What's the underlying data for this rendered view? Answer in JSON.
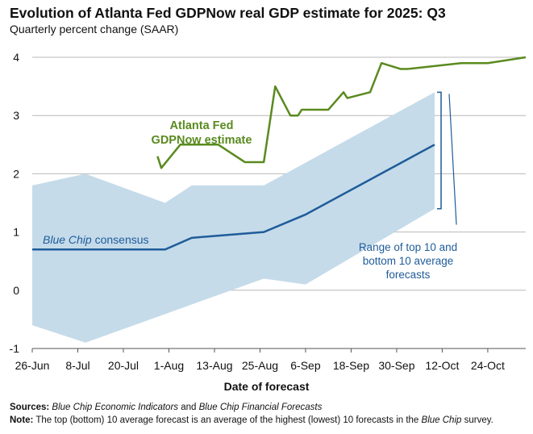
{
  "title": "Evolution of Atlanta Fed GDPNow real GDP estimate for 2025: Q3",
  "subtitle": "Quarterly percent change (SAAR)",
  "footnotes": {
    "sources_label": "Sources:",
    "sources_text_1": "Blue Chip Economic Indicators",
    "sources_text_2": " and ",
    "sources_text_3": "Blue Chip Financial Forecasts",
    "note_label": "Note:",
    "note_text_1": " The top (bottom) 10 average forecast is an average of the highest (lowest) 10 forecasts in the ",
    "note_text_2": "Blue Chip",
    "note_text_3": " survey."
  },
  "chart_data": {
    "type": "line",
    "title": "Evolution of Atlanta Fed GDPNow real GDP estimate for 2025: Q3",
    "subtitle": "Quarterly percent change (SAAR)",
    "xlabel": "Date of forecast",
    "ylabel": "",
    "x_tick_labels": [
      "26-Jun",
      "8-Jul",
      "20-Jul",
      "1-Aug",
      "13-Aug",
      "25-Aug",
      "6-Sep",
      "18-Sep",
      "30-Sep",
      "12-Oct",
      "24-Oct"
    ],
    "y_tick_labels": [
      "-1",
      "0",
      "1",
      "2",
      "3",
      "4"
    ],
    "ylim": [
      -1,
      4
    ],
    "xlim_days": [
      0,
      130
    ],
    "grid": "horizontal",
    "colors": {
      "gdpnow": "#5a8a1f",
      "consensus": "#1f5c99",
      "range": "#c5dbea",
      "grid": "#b8b8b8"
    },
    "series": [
      {
        "name": "Atlanta Fed GDPNow estimate",
        "label_lines": [
          "Atlanta Fed",
          "GDPNow estimate"
        ],
        "points": [
          [
            "2025-07-29",
            2.3
          ],
          [
            "2025-07-30",
            2.1
          ],
          [
            "2025-08-04",
            2.5
          ],
          [
            "2025-08-07",
            2.5
          ],
          [
            "2025-08-14",
            2.5
          ],
          [
            "2025-08-21",
            2.2
          ],
          [
            "2025-08-26",
            2.2
          ],
          [
            "2025-08-29",
            3.5
          ],
          [
            "2025-09-02",
            3.0
          ],
          [
            "2025-09-04",
            3.0
          ],
          [
            "2025-09-05",
            3.1
          ],
          [
            "2025-09-09",
            3.1
          ],
          [
            "2025-09-12",
            3.1
          ],
          [
            "2025-09-16",
            3.4
          ],
          [
            "2025-09-17",
            3.3
          ],
          [
            "2025-09-23",
            3.4
          ],
          [
            "2025-09-26",
            3.9
          ],
          [
            "2025-10-01",
            3.8
          ],
          [
            "2025-10-03",
            3.8
          ],
          [
            "2025-10-17",
            3.9
          ],
          [
            "2025-10-24",
            3.9
          ],
          [
            "2025-11-03",
            4.0
          ]
        ]
      },
      {
        "name": "Blue Chip consensus",
        "label_italic": "Blue Chip",
        "label_rest": " consensus",
        "points": [
          [
            "2025-06-26",
            0.7
          ],
          [
            "2025-07-10",
            0.7
          ],
          [
            "2025-07-24",
            0.7
          ],
          [
            "2025-07-31",
            0.7
          ],
          [
            "2025-08-07",
            0.9
          ],
          [
            "2025-08-26",
            1.0
          ],
          [
            "2025-09-06",
            1.3
          ],
          [
            "2025-10-10",
            2.5
          ]
        ]
      },
      {
        "name": "Range of top 10 and bottom 10 average forecasts",
        "label_lines": [
          "Range of top 10 and",
          "bottom 10 average",
          "forecasts"
        ],
        "type": "area-range",
        "upper": [
          [
            "2025-06-26",
            1.8
          ],
          [
            "2025-07-10",
            2.0
          ],
          [
            "2025-07-31",
            1.5
          ],
          [
            "2025-08-07",
            1.8
          ],
          [
            "2025-08-26",
            1.8
          ],
          [
            "2025-10-10",
            3.4
          ]
        ],
        "lower": [
          [
            "2025-06-26",
            -0.6
          ],
          [
            "2025-07-10",
            -0.9
          ],
          [
            "2025-08-26",
            0.2
          ],
          [
            "2025-09-06",
            0.1
          ],
          [
            "2025-10-10",
            1.4
          ]
        ]
      }
    ]
  }
}
